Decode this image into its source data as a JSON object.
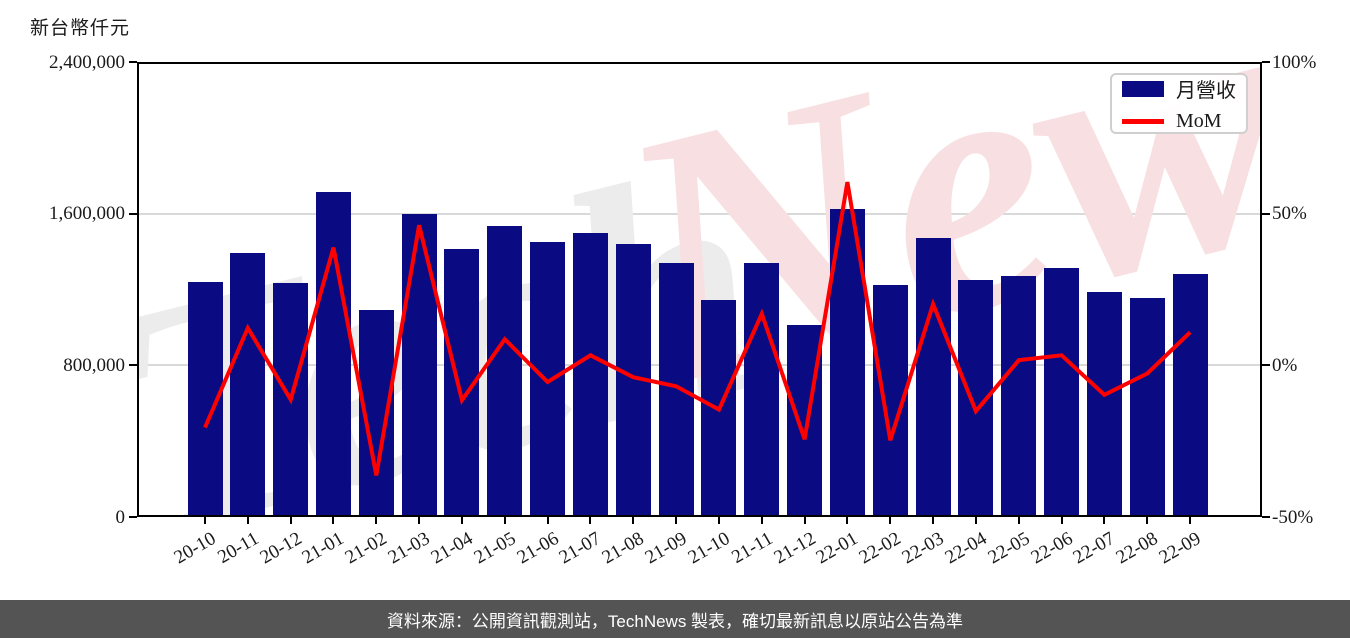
{
  "title": "新台幣仟元",
  "legend": {
    "series1": "月營收",
    "series2": "MoM"
  },
  "caption": "資料來源：公開資訊觀測站，TechNews 製表，確切最新訊息以原站公告為準",
  "watermark": {
    "text_left": "Tech",
    "text_right": "News",
    "gray": "#ececec",
    "pink": "#f8e0e2"
  },
  "colors": {
    "bar": "#0a0a82",
    "line": "#ff0000",
    "grid": "#d9d9d9",
    "axis": "#000000",
    "caption_bg": "#545454",
    "caption_fg": "#ffffff",
    "legend_border": "#cfcfcf"
  },
  "axes": {
    "left_unit": "新台幣仟元",
    "left_ticks": [
      "2,400,000",
      "1,600,000",
      "800,000",
      "0"
    ],
    "left_tick_values": [
      2400000,
      1600000,
      800000,
      0
    ],
    "right_ticks": [
      "100%",
      "50%",
      "0%",
      "-50%"
    ],
    "right_tick_values": [
      100,
      50,
      0,
      -50
    ]
  },
  "chart_data": {
    "type": "bar+line",
    "title": "新台幣仟元",
    "categories": [
      "20-10",
      "20-11",
      "20-12",
      "21-01",
      "21-02",
      "21-03",
      "21-04",
      "21-05",
      "21-06",
      "21-07",
      "21-08",
      "21-09",
      "21-10",
      "21-11",
      "21-12",
      "22-01",
      "22-02",
      "22-03",
      "22-04",
      "22-05",
      "22-06",
      "22-07",
      "22-08",
      "22-09"
    ],
    "series": [
      {
        "name": "月營收",
        "type": "bar",
        "unit": "新台幣仟元",
        "color": "#0a0a82",
        "axis": "left",
        "values": [
          1241000,
          1394000,
          1236000,
          1716000,
          1093000,
          1598000,
          1415000,
          1537000,
          1452000,
          1500000,
          1441000,
          1341000,
          1146000,
          1341000,
          1014000,
          1626000,
          1225000,
          1473000,
          1251000,
          1272000,
          1315000,
          1188000,
          1156000,
          1283000
        ]
      },
      {
        "name": "MoM",
        "type": "line",
        "unit": "%",
        "color": "#ff0000",
        "axis": "right",
        "values": [
          -20.5,
          12.3,
          -11.3,
          38.8,
          -36.3,
          46.2,
          -11.5,
          8.6,
          -5.5,
          3.3,
          -3.9,
          -6.9,
          -14.6,
          17.0,
          -24.4,
          60.4,
          -24.7,
          20.2,
          -15.1,
          1.7,
          3.3,
          -9.7,
          -2.7,
          10.9
        ]
      }
    ],
    "left_axis": {
      "min": 0,
      "max": 2400000,
      "ticks": [
        0,
        800000,
        1600000,
        2400000
      ]
    },
    "right_axis": {
      "min": -50,
      "max": 100,
      "ticks": [
        -50,
        0,
        50,
        100
      ]
    },
    "grid": "horizontal",
    "legend_position": "top-right"
  }
}
